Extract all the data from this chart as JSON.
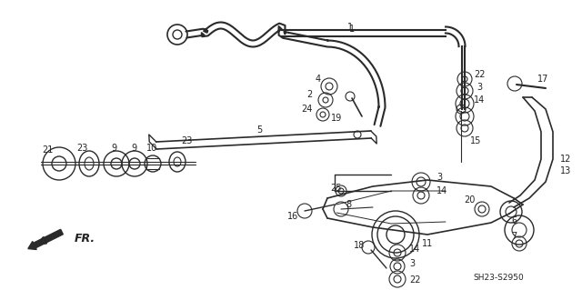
{
  "background_color": "#ffffff",
  "fig_width": 6.4,
  "fig_height": 3.19,
  "dpi": 100,
  "part_number_text": "SH23-S2950",
  "fr_label": "FR.",
  "line_color": "#2a2a2a",
  "text_color": "#222222"
}
